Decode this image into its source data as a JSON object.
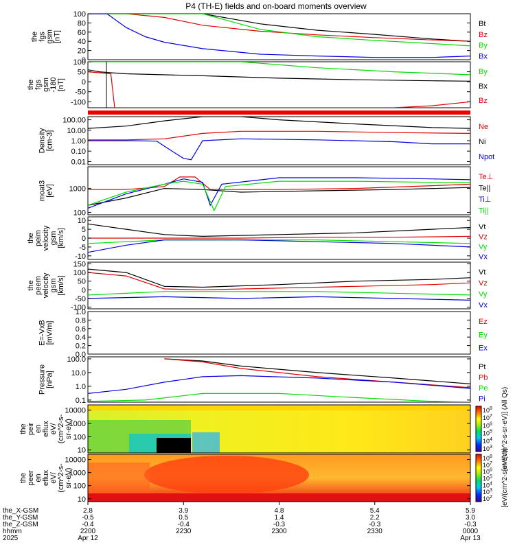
{
  "title": "P4 (TH-E) fields and on-board moments overview",
  "colors": {
    "black": "#000000",
    "red": "#e00000",
    "green": "#00dd00",
    "blue": "#0000e0"
  },
  "chart_data": [
    {
      "type": "line",
      "ylabel": [
        "the",
        "fgs",
        "gsm",
        "[nT]"
      ],
      "ylim": [
        0,
        100
      ],
      "yticks": [
        "100",
        "80",
        "60",
        "40",
        "20",
        "0"
      ],
      "legend": [
        "Bt",
        "Bz",
        "By",
        "Bx"
      ],
      "series": [
        {
          "name": "Bt",
          "color": "#000000",
          "x": [
            0,
            0.1,
            0.2,
            0.3,
            0.45,
            0.6,
            0.75,
            0.9,
            1
          ],
          "y": [
            100,
            100,
            100,
            100,
            78,
            64,
            55,
            45,
            40
          ]
        },
        {
          "name": "Bz",
          "color": "#e00000",
          "x": [
            0,
            0.1,
            0.2,
            0.3,
            0.45,
            0.6,
            0.75,
            0.9,
            1
          ],
          "y": [
            100,
            100,
            92,
            75,
            62,
            54,
            48,
            43,
            40
          ]
        },
        {
          "name": "By",
          "color": "#00dd00",
          "x": [
            0,
            0.1,
            0.2,
            0.3,
            0.45,
            0.6,
            0.75,
            0.9,
            1
          ],
          "y": [
            100,
            100,
            100,
            100,
            66,
            50,
            42,
            35,
            30
          ]
        },
        {
          "name": "Bx",
          "color": "#0000e0",
          "x": [
            0,
            0.05,
            0.1,
            0.15,
            0.2,
            0.3,
            0.45,
            0.6,
            0.75,
            0.9,
            1
          ],
          "y": [
            100,
            100,
            70,
            50,
            38,
            24,
            12,
            8,
            5,
            5,
            8
          ]
        }
      ]
    },
    {
      "type": "line",
      "ylabel": [
        "the",
        "fgs",
        "gsm",
        "-180",
        "[nT]"
      ],
      "ylim": [
        -130,
        100
      ],
      "yticks": [
        "100",
        "50",
        "0",
        "-50",
        "-100"
      ],
      "legend": [
        "By",
        "Bx",
        "Bz"
      ],
      "series": [
        {
          "name": "By",
          "color": "#00dd00",
          "x": [
            0,
            0.2,
            0.4,
            0.6,
            0.8,
            1
          ],
          "y": [
            100,
            100,
            100,
            70,
            50,
            35
          ]
        },
        {
          "name": "Bx",
          "color": "#000000",
          "x": [
            0,
            0.03,
            0.06,
            0.1,
            0.3,
            0.5,
            0.7,
            0.9,
            1
          ],
          "y": [
            60,
            50,
            45,
            40,
            30,
            18,
            10,
            5,
            3
          ]
        },
        {
          "name": "Bz",
          "color": "#e00000",
          "x": [
            0,
            0.03,
            0.06,
            0.07,
            0.8,
            0.9,
            1
          ],
          "y": [
            50,
            45,
            40,
            -130,
            -130,
            -120,
            -100
          ]
        }
      ]
    },
    {
      "type": "line",
      "ylabel": [
        "Density",
        "[cm-3]"
      ],
      "yscale": "log",
      "ylim": [
        0.005,
        200
      ],
      "yticks": [
        "100.00",
        "10.00",
        "1.00",
        "0.10",
        "0.01"
      ],
      "legend": [
        "Ne",
        "Ni",
        "Npot"
      ],
      "series": [
        {
          "name": "Ne",
          "color": "#e00000",
          "x": [
            0,
            0.1,
            0.2,
            0.3,
            0.4,
            0.6,
            0.8,
            1
          ],
          "y": [
            1.2,
            1.2,
            1.5,
            5,
            8,
            8,
            6,
            5
          ]
        },
        {
          "name": "Ni",
          "color": "#000000",
          "x": [
            0,
            0.1,
            0.2,
            0.3,
            0.4,
            0.5,
            0.7,
            0.9,
            1
          ],
          "y": [
            15,
            25,
            80,
            200,
            200,
            100,
            40,
            18,
            15
          ]
        },
        {
          "name": "Npot",
          "color": "#0000e0",
          "x": [
            0,
            0.12,
            0.18,
            0.22,
            0.25,
            0.27,
            0.3,
            0.4,
            0.6,
            0.8,
            0.9,
            1
          ],
          "y": [
            1,
            1,
            0.9,
            0.1,
            0.02,
            0.015,
            1,
            1.5,
            1.2,
            0.8,
            0.5,
            0.5
          ]
        }
      ]
    },
    {
      "type": "line",
      "ylabel": [
        "moat3",
        "[eV]"
      ],
      "yscale": "log",
      "ylim": [
        80,
        8000
      ],
      "yticks": [
        "1000",
        "100"
      ],
      "legend": [
        "Te⊥",
        "Te||",
        "Ti⊥",
        "Ti||"
      ],
      "series": [
        {
          "name": "Te⊥",
          "color": "#e00000",
          "x": [
            0,
            0.1,
            0.2,
            0.24,
            0.28,
            0.32,
            0.5,
            0.7,
            0.9,
            1
          ],
          "y": [
            900,
            900,
            1200,
            3000,
            3000,
            900,
            900,
            1000,
            1300,
            1500
          ]
        },
        {
          "name": "Te||",
          "color": "#000000",
          "x": [
            0,
            0.1,
            0.2,
            0.3,
            0.4,
            0.6,
            0.8,
            1
          ],
          "y": [
            200,
            400,
            1000,
            900,
            700,
            800,
            900,
            1100
          ]
        },
        {
          "name": "Ti⊥",
          "color": "#0000e0",
          "x": [
            0,
            0.1,
            0.2,
            0.25,
            0.3,
            0.32,
            0.35,
            0.5,
            0.7,
            0.9,
            1
          ],
          "y": [
            150,
            600,
            1500,
            2500,
            1800,
            200,
            1500,
            2800,
            2800,
            2500,
            2300
          ]
        },
        {
          "name": "Ti||",
          "color": "#00dd00",
          "x": [
            0,
            0.1,
            0.2,
            0.25,
            0.3,
            0.33,
            0.36,
            0.5,
            0.7,
            0.9,
            1
          ],
          "y": [
            200,
            700,
            1500,
            2000,
            1500,
            120,
            1200,
            2000,
            2000,
            1800,
            1800
          ]
        }
      ]
    },
    {
      "type": "line",
      "ylabel": [
        "the",
        "peim",
        "velocity",
        "gsm",
        "[km/s]"
      ],
      "ylim": [
        -12,
        12
      ],
      "yticks": [
        "10",
        "5",
        "0",
        "-5",
        "-10"
      ],
      "legend": [
        "Vt",
        "Vz",
        "Vy",
        "Vx"
      ],
      "series": [
        {
          "name": "Vt",
          "color": "#000000",
          "x": [
            0,
            0.1,
            0.2,
            0.3,
            0.5,
            0.7,
            0.9,
            1
          ],
          "y": [
            8,
            5,
            2,
            1,
            2,
            3,
            5,
            6
          ]
        },
        {
          "name": "Vz",
          "color": "#e00000",
          "x": [
            0,
            0.2,
            0.4,
            0.6,
            0.8,
            1
          ],
          "y": [
            0,
            0,
            0,
            0.5,
            0.5,
            1
          ]
        },
        {
          "name": "Vy",
          "color": "#00dd00",
          "x": [
            0,
            0.2,
            0.4,
            0.6,
            0.8,
            1
          ],
          "y": [
            -3,
            -1,
            -1,
            -1,
            -2,
            -3
          ]
        },
        {
          "name": "Vx",
          "color": "#0000e0",
          "x": [
            0,
            0.1,
            0.2,
            0.4,
            0.6,
            0.8,
            1
          ],
          "y": [
            -8,
            -4,
            -1,
            -1,
            -2,
            -3,
            -5
          ]
        }
      ]
    },
    {
      "type": "line",
      "ylabel": [
        "the",
        "peem",
        "velocity",
        "gsm",
        "[km/s]"
      ],
      "ylim": [
        -110,
        160
      ],
      "yticks": [
        "150",
        "100",
        "50",
        "0",
        "-50",
        "-100"
      ],
      "legend": [
        "Vt",
        "Vz",
        "Vy",
        "Vx"
      ],
      "series": [
        {
          "name": "Vt",
          "color": "#000000",
          "x": [
            0,
            0.1,
            0.15,
            0.2,
            0.3,
            0.5,
            0.7,
            0.9,
            1
          ],
          "y": [
            120,
            100,
            60,
            20,
            15,
            30,
            50,
            60,
            70
          ]
        },
        {
          "name": "Vz",
          "color": "#e00000",
          "x": [
            0,
            0.1,
            0.2,
            0.3,
            0.5,
            0.7,
            0.9,
            1
          ],
          "y": [
            100,
            80,
            5,
            0,
            10,
            20,
            30,
            40
          ]
        },
        {
          "name": "Vy",
          "color": "#00dd00",
          "x": [
            0,
            0.2,
            0.4,
            0.6,
            0.8,
            1
          ],
          "y": [
            -30,
            -10,
            -10,
            -10,
            -20,
            -30
          ]
        },
        {
          "name": "Vx",
          "color": "#0000e0",
          "x": [
            0,
            0.2,
            0.4,
            0.6,
            0.8,
            1
          ],
          "y": [
            -50,
            -40,
            -50,
            -40,
            -50,
            -60
          ]
        }
      ]
    },
    {
      "type": "line",
      "ylabel": [
        "E=-VxB",
        "[mV/m]"
      ],
      "ylim": [
        0,
        1
      ],
      "yticks": [
        "1.0",
        "0.8",
        "0.6",
        "0.4",
        "0.2",
        "0.0"
      ],
      "legend": [
        "Ez",
        "Ey",
        "Ex"
      ],
      "series": []
    },
    {
      "type": "line",
      "ylabel": [
        "Pressure",
        "[nPa]"
      ],
      "yscale": "log",
      "ylim": [
        0.07,
        140
      ],
      "yticks": [
        "100.0",
        "10.0",
        "1.0",
        "0.1"
      ],
      "legend": [
        "Pt",
        "Pb",
        "Pe",
        "Pi"
      ],
      "series": [
        {
          "name": "Pt",
          "color": "#000000",
          "x": [
            0.2,
            0.3,
            0.4,
            0.6,
            0.8,
            1
          ],
          "y": [
            100,
            70,
            30,
            10,
            4,
            1.5
          ]
        },
        {
          "name": "Pb",
          "color": "#e00000",
          "x": [
            0.2,
            0.3,
            0.4,
            0.6,
            0.8,
            1
          ],
          "y": [
            100,
            60,
            20,
            5,
            2,
            0.8
          ]
        },
        {
          "name": "Pe",
          "color": "#00dd00",
          "x": [
            0,
            0.15,
            0.3,
            0.5,
            0.7,
            0.9,
            1
          ],
          "y": [
            0.08,
            0.1,
            0.3,
            0.3,
            0.15,
            0.08,
            0.07
          ]
        },
        {
          "name": "Pi",
          "color": "#0000e0",
          "x": [
            0,
            0.1,
            0.2,
            0.3,
            0.4,
            0.6,
            0.8,
            1
          ],
          "y": [
            0.3,
            0.6,
            2,
            5,
            6,
            4,
            2,
            0.7
          ]
        }
      ]
    },
    {
      "type": "heatmap",
      "ylabel": [
        "the",
        "peir",
        "en",
        "eflux",
        "eV/",
        "(cm^2-s-",
        "sr-eV)"
      ],
      "yscale": "log",
      "ylim": [
        6,
        25000
      ],
      "yticks": [
        "10000",
        "1000",
        "100",
        "10"
      ]
    },
    {
      "type": "heatmap",
      "ylabel": [
        "the",
        "peer",
        "en",
        "eflux",
        "eV/",
        "(cm^2-s-",
        "sr-eV)"
      ],
      "yscale": "log",
      "ylim": [
        6,
        25000
      ],
      "yticks": [
        "10000",
        "1000",
        "100",
        "10"
      ]
    }
  ],
  "colorbars": [
    {
      "ticks": [
        "10^8",
        "10^7",
        "10^6",
        "10^5",
        "10^4",
        "10^3"
      ],
      "label": "[eV/(cm^2-s-sr-eV)] (All Qs)"
    },
    {
      "ticks": [
        "10^8",
        "10^7",
        "10^6",
        "10^5",
        "10^4",
        "10^3",
        "10^2"
      ],
      "label": "[eV/(cm^2-s-sr-eV)]"
    }
  ],
  "xaxis": {
    "row_labels": [
      "the_X-GSM",
      "the_Y-GSM",
      "the_Z-GSM",
      "hhmm",
      "2025"
    ],
    "ticks": [
      {
        "values": [
          "2.8",
          "-0.5",
          "-0.4",
          "2200",
          "Apr 12"
        ]
      },
      {
        "values": [
          "3.9",
          "0.5",
          "-0.4",
          "2230",
          ""
        ]
      },
      {
        "values": [
          "4.8",
          "1.4",
          "-0.3",
          "2300",
          ""
        ]
      },
      {
        "values": [
          "5.4",
          "2.2",
          "-0.3",
          "2330",
          ""
        ]
      },
      {
        "values": [
          "5.9",
          "3.0",
          "-0.3",
          "0000",
          "Apr 13"
        ]
      }
    ]
  }
}
